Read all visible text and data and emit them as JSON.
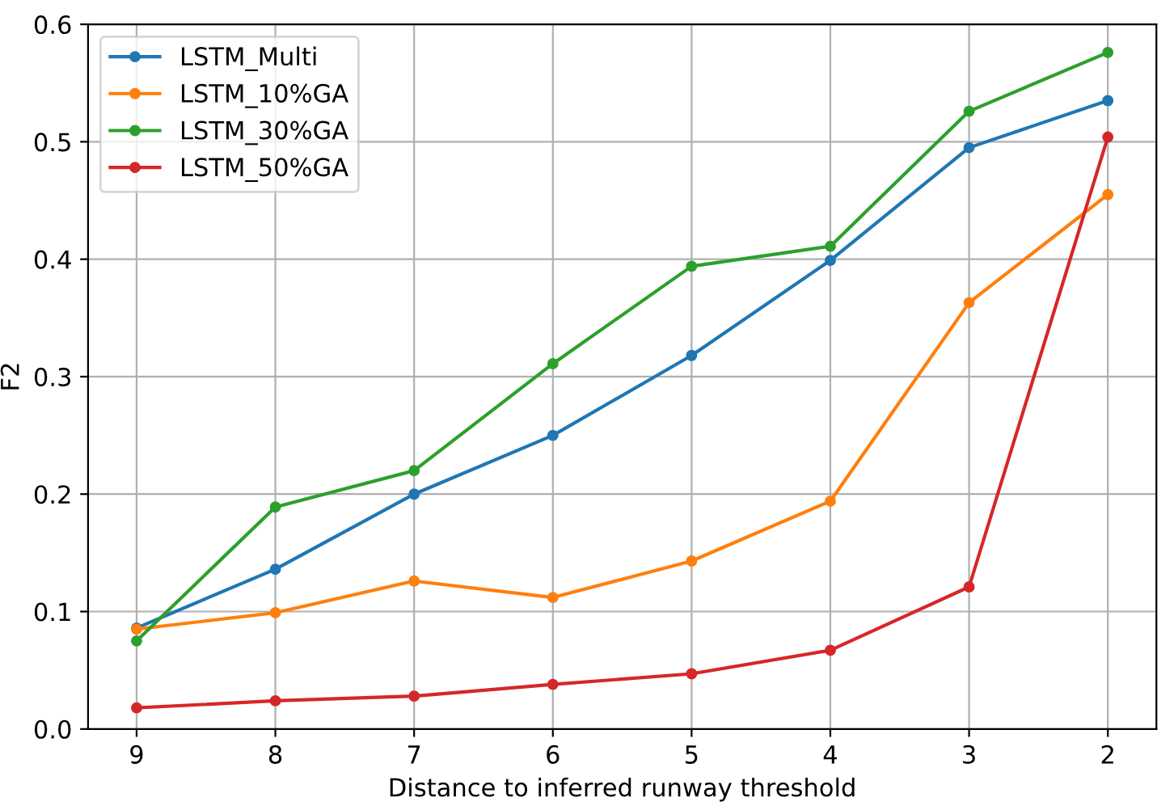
{
  "chart_data": {
    "type": "line",
    "xlabel": "Distance to inferred runway threshold",
    "ylabel": "F2",
    "x": [
      9,
      8,
      7,
      6,
      5,
      4,
      3,
      2
    ],
    "xlim": [
      9.35,
      1.65
    ],
    "xticks": [
      9,
      8,
      7,
      6,
      5,
      4,
      3,
      2
    ],
    "ylim": [
      0.0,
      0.6
    ],
    "yticks": [
      {
        "value": 0.0,
        "label": "0.0"
      },
      {
        "value": 0.1,
        "label": "0.1"
      },
      {
        "value": 0.2,
        "label": "0.2"
      },
      {
        "value": 0.3,
        "label": "0.3"
      },
      {
        "value": 0.4,
        "label": "0.4"
      },
      {
        "value": 0.5,
        "label": "0.5"
      },
      {
        "value": 0.6,
        "label": "0.6"
      }
    ],
    "grid": true,
    "legend": "top left",
    "marker": "circle",
    "line_style": "solid",
    "series": [
      {
        "name": "LSTM_Multi",
        "color": "#1f77b4",
        "values": [
          0.086,
          0.136,
          0.2,
          0.25,
          0.318,
          0.399,
          0.495,
          0.535
        ]
      },
      {
        "name": "LSTM_10%GA",
        "color": "#ff7f0e",
        "values": [
          0.085,
          0.099,
          0.126,
          0.112,
          0.143,
          0.194,
          0.363,
          0.455
        ]
      },
      {
        "name": "LSTM_30%GA",
        "color": "#2ca02c",
        "values": [
          0.075,
          0.189,
          0.22,
          0.311,
          0.394,
          0.411,
          0.526,
          0.576
        ]
      },
      {
        "name": "LSTM_50%GA",
        "color": "#d62728",
        "values": [
          0.018,
          0.024,
          0.028,
          0.038,
          0.047,
          0.067,
          0.121,
          0.504
        ]
      }
    ]
  }
}
